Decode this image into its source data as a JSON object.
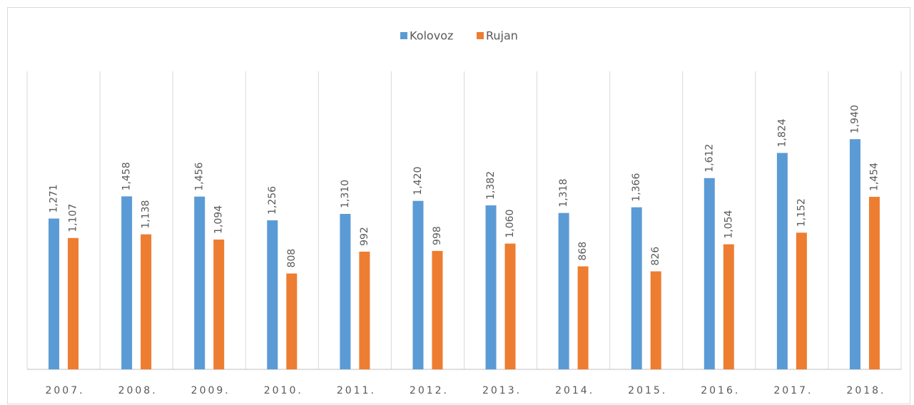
{
  "chart_data": {
    "type": "bar",
    "categories": [
      "2007.",
      "2008.",
      "2009.",
      "2010.",
      "2011.",
      "2012.",
      "2013.",
      "2014.",
      "2015.",
      "2016.",
      "2017.",
      "2018."
    ],
    "series": [
      {
        "name": "Kolovoz",
        "color": "#5b9bd5",
        "values": [
          1271,
          1458,
          1456,
          1256,
          1310,
          1420,
          1382,
          1318,
          1366,
          1612,
          1824,
          1940
        ],
        "value_labels": [
          "1,271",
          "1,458",
          "1,456",
          "1,256",
          "1,310",
          "1,420",
          "1,382",
          "1,318",
          "1,366",
          "1,612",
          "1,824",
          "1,940"
        ]
      },
      {
        "name": "Rujan",
        "color": "#ed7d31",
        "values": [
          1107,
          1138,
          1094,
          808,
          992,
          998,
          1060,
          868,
          826,
          1054,
          1152,
          1454
        ],
        "value_labels": [
          "1,107",
          "1,138",
          "1,094",
          "808",
          "992",
          "998",
          "1,060",
          "868",
          "826",
          "1,054",
          "1,152",
          "1,454"
        ]
      }
    ],
    "ylim": [
      0,
      2500
    ],
    "legend": "top"
  }
}
